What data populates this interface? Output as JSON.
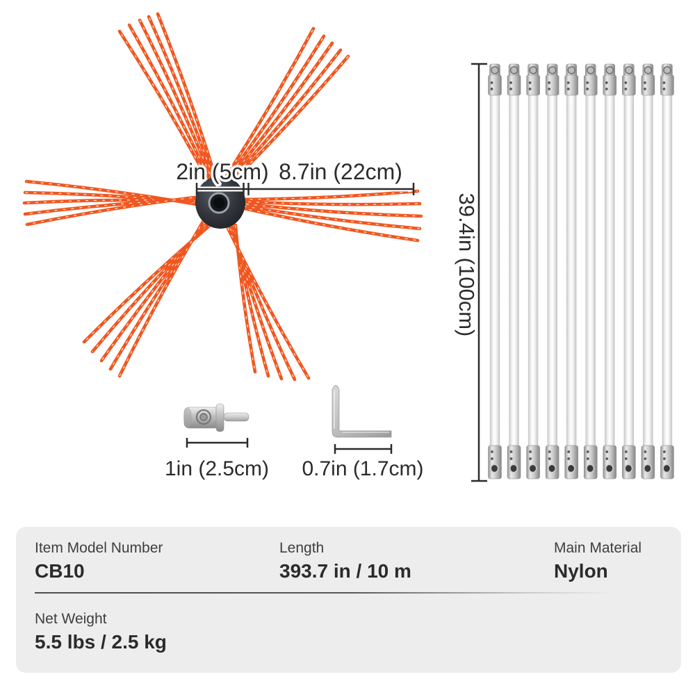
{
  "illustration": {
    "brush": {
      "dim_hub_label": "2in (5cm)",
      "dim_bristle_label": "8.7in (22cm)"
    },
    "adapter": {
      "dim_label": "1in (2.5cm)"
    },
    "hex_key": {
      "dim_label": "0.7in (1.7cm)"
    },
    "rods": {
      "count": 10,
      "dim_label": "39.4in (100cm)"
    },
    "colors": {
      "bristle_orange": "#f0561e",
      "dimension_line": "#2b2b2b",
      "hub_dark": "#2e3138"
    }
  },
  "spec_panel": {
    "background": "#ededed",
    "fields": [
      {
        "label": "Item Model Number",
        "value": "CB10"
      },
      {
        "label": "Length",
        "value": "393.7 in / 10 m"
      },
      {
        "label": "Main Material",
        "value": "Nylon"
      },
      {
        "label": "Net Weight",
        "value": "5.5 lbs / 2.5 kg"
      }
    ]
  }
}
